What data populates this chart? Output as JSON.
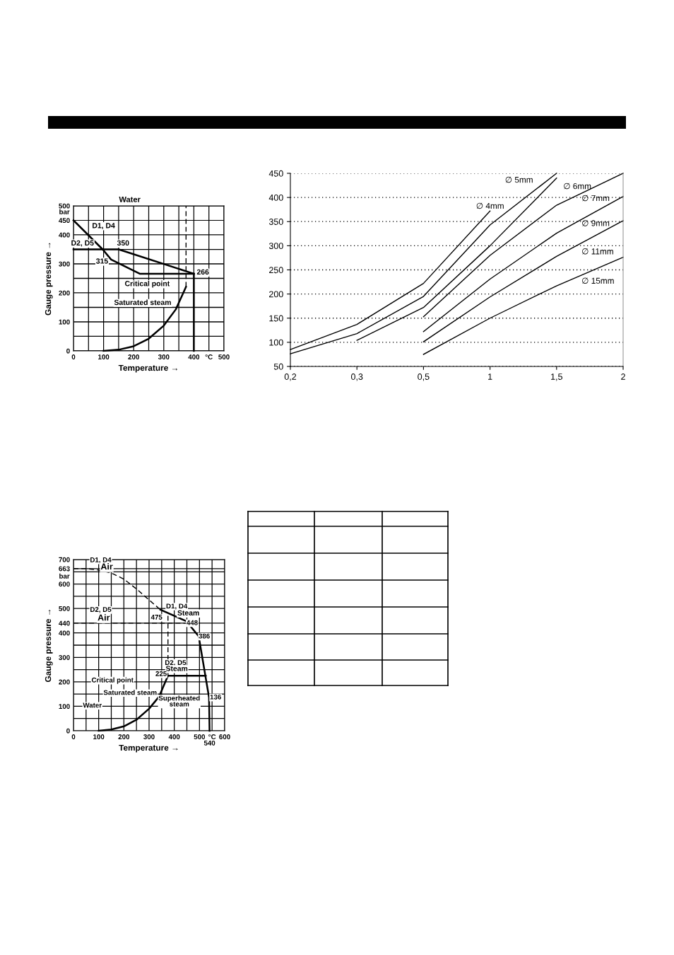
{
  "chart_data": [
    {
      "type": "line",
      "xlabel": "Temperature →",
      "ylabel": "Gauge pressure →",
      "grid": true,
      "xlim": [
        0,
        500
      ],
      "ylim": [
        0,
        500
      ],
      "xticks": [
        0,
        {
          "value": 50,
          "label": null
        },
        100,
        {
          "value": 150,
          "label": null
        },
        200,
        {
          "value": 250,
          "label": null
        },
        300,
        {
          "value": 350,
          "label": null
        },
        400,
        {
          "value": 450,
          "label": "°C"
        },
        500
      ],
      "yticks": [
        0,
        {
          "value": 50,
          "label": null
        },
        100,
        {
          "value": 150,
          "label": null
        },
        200,
        {
          "value": 250,
          "label": null
        },
        300,
        {
          "value": 350,
          "label": null
        },
        400,
        450,
        500
      ],
      "series": [
        {
          "color": "#000000",
          "x": [
            0,
            97,
            125,
            220,
            400
          ],
          "values": [
            450,
            350,
            315,
            266,
            266
          ]
        },
        {
          "color": "#000000",
          "x": [
            0,
            150,
            400
          ],
          "values": [
            350,
            350,
            266
          ]
        },
        {
          "color": "#000000",
          "x": [
            400,
            400
          ],
          "values": [
            266,
            0
          ]
        },
        {
          "color": "#000000",
          "x": [
            100,
            150,
            200,
            250,
            300,
            340,
            374
          ],
          "values": [
            0,
            4,
            16,
            42,
            87,
            143,
            221
          ]
        },
        {
          "color": "#000000",
          "line_style": "dashed",
          "x": [
            374,
            374
          ],
          "values": [
            221,
            500
          ]
        }
      ],
      "annotations": [
        "Water",
        "bar",
        "D1, D4",
        "D2, D5",
        "350",
        "315",
        "266",
        "Critical point",
        "Saturated steam"
      ]
    },
    {
      "type": "line",
      "grid": "y",
      "categories": [
        "0,2",
        "0,3",
        "0,5",
        "1",
        "1,5",
        "2"
      ],
      "ylim": [
        50,
        450
      ],
      "yticks": [
        50,
        100,
        150,
        200,
        250,
        300,
        350,
        400,
        450
      ],
      "series": [
        {
          "name": "∅ 4mm",
          "color": "#000000",
          "values": [
            85,
            137,
            222,
            372,
            null,
            null
          ]
        },
        {
          "name": "∅ 5mm",
          "color": "#000000",
          "values": [
            76,
            118,
            195,
            343,
            450,
            null
          ]
        },
        {
          "name": "∅ 6mm",
          "color": "#000000",
          "values": [
            null,
            104,
            172,
            300,
            440,
            null
          ]
        },
        {
          "name": "∅ 7mm",
          "color": "#000000",
          "values": [
            null,
            null,
            153,
            280,
            384,
            450
          ]
        },
        {
          "name": "∅ 9mm",
          "color": "#000000",
          "values": [
            null,
            null,
            122,
            231,
            326,
            402
          ]
        },
        {
          "name": "∅ 11mm",
          "color": "#000000",
          "values": [
            null,
            null,
            101,
            194,
            278,
            352
          ]
        },
        {
          "name": "∅ 15mm",
          "color": "#000000",
          "values": [
            null,
            null,
            75,
            150,
            217,
            276
          ]
        }
      ]
    },
    {
      "type": "line",
      "xlabel": "Temperature →",
      "ylabel": "Gauge pressure →",
      "grid": true,
      "xlim": [
        0,
        600
      ],
      "ylim": [
        0,
        700
      ],
      "xticks": [
        0,
        {
          "value": 50,
          "label": null
        },
        100,
        {
          "value": 150,
          "label": null
        },
        200,
        {
          "value": 250,
          "label": null
        },
        300,
        {
          "value": 350,
          "label": null
        },
        400,
        {
          "value": 450,
          "label": null
        },
        500,
        {
          "value": 550,
          "label": "°C"
        },
        600
      ],
      "yticks": [
        0,
        {
          "value": 50,
          "label": null
        },
        100,
        {
          "value": 150,
          "label": null
        },
        200,
        {
          "value": 250,
          "label": null
        },
        300,
        {
          "value": 350,
          "label": null
        },
        400,
        440,
        500,
        {
          "value": 550,
          "label": null
        },
        600,
        {
          "value": 650,
          "label": null
        },
        663,
        700
      ],
      "series": [
        {
          "color": "#000000",
          "line_style": "dashed",
          "x": [
            0,
            50,
            100,
            150,
            200,
            250,
            300,
            345
          ],
          "values": [
            663,
            663,
            657,
            645,
            620,
            580,
            535,
            495
          ]
        },
        {
          "color": "#000000",
          "x": [
            345,
            448,
            497,
            538,
            540
          ],
          "values": [
            495,
            448,
            386,
            136,
            0
          ]
        },
        {
          "color": "#000000",
          "x": [
            375,
            525
          ],
          "values": [
            225,
            225
          ]
        },
        {
          "color": "#000000",
          "x": [
            100,
            150,
            200,
            250,
            300,
            340,
            375
          ],
          "values": [
            0,
            5,
            18,
            45,
            90,
            140,
            225
          ]
        },
        {
          "color": "#000000",
          "line_style": "dashed",
          "x": [
            0,
            448
          ],
          "values": [
            440,
            440
          ]
        },
        {
          "color": "#000000",
          "line_style": "dashed",
          "x": [
            375,
            375
          ],
          "values": [
            225,
            475
          ]
        }
      ],
      "annotations": [
        "bar",
        "D1, D4",
        "Air",
        "D2, D5",
        "Air",
        "475",
        "D1, D4",
        "Steam",
        "448",
        "386",
        "D2, D5",
        "Steam",
        "225",
        "Critical point",
        "Water",
        "Saturated steam",
        "Superheated\nsteam",
        "136",
        "540"
      ]
    }
  ]
}
